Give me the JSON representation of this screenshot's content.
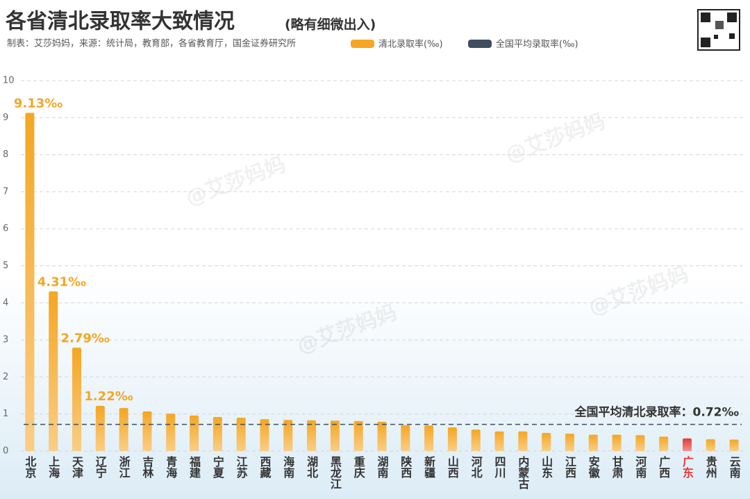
{
  "chart_data": {
    "type": "bar",
    "title": "各省清北录取率大致情况",
    "subtitle": "(略有细微出入)",
    "source": "制表：艾莎妈妈，来源：统计局，教育部，各省教育厅，国金证券研究所",
    "watermark": "@艾莎妈妈",
    "categories": [
      "北京",
      "上海",
      "天津",
      "辽宁",
      "浙江",
      "吉林",
      "青海",
      "福建",
      "宁夏",
      "江苏",
      "西藏",
      "海南",
      "湖北",
      "黑龙江",
      "重庆",
      "湖南",
      "陕西",
      "新疆",
      "山西",
      "河北",
      "四川",
      "内蒙古",
      "山东",
      "江西",
      "安徽",
      "甘肃",
      "河南",
      "广西",
      "广东",
      "贵州",
      "云南"
    ],
    "series": [
      {
        "name": "清北录取率(‰)",
        "color": "#f5a623",
        "values": [
          9.13,
          4.31,
          2.79,
          1.22,
          1.16,
          1.07,
          1.01,
          0.96,
          0.92,
          0.9,
          0.86,
          0.84,
          0.83,
          0.82,
          0.81,
          0.79,
          0.7,
          0.69,
          0.64,
          0.58,
          0.53,
          0.53,
          0.49,
          0.47,
          0.44,
          0.44,
          0.43,
          0.39,
          0.34,
          0.32,
          0.31
        ],
        "value_labels": [
          "9.13‰",
          "4.31‰",
          "2.79‰",
          "1.22‰",
          null,
          null,
          null,
          null,
          null,
          null,
          null,
          null,
          null,
          null,
          null,
          null,
          null,
          null,
          null,
          null,
          null,
          null,
          null,
          null,
          null,
          null,
          null,
          null,
          null,
          null,
          null
        ]
      }
    ],
    "highlight_category": "广东",
    "highlight_color": "#e53935",
    "average": {
      "name": "全国平均录取率(‰)",
      "color": "#3d4f5f",
      "value": 0.72,
      "label": "全国平均清北录取率：0.72‰"
    },
    "ylim": [
      0,
      10
    ],
    "yticks": [
      0,
      1,
      2,
      3,
      4,
      5,
      6,
      7,
      8,
      9,
      10
    ],
    "grid": true
  }
}
